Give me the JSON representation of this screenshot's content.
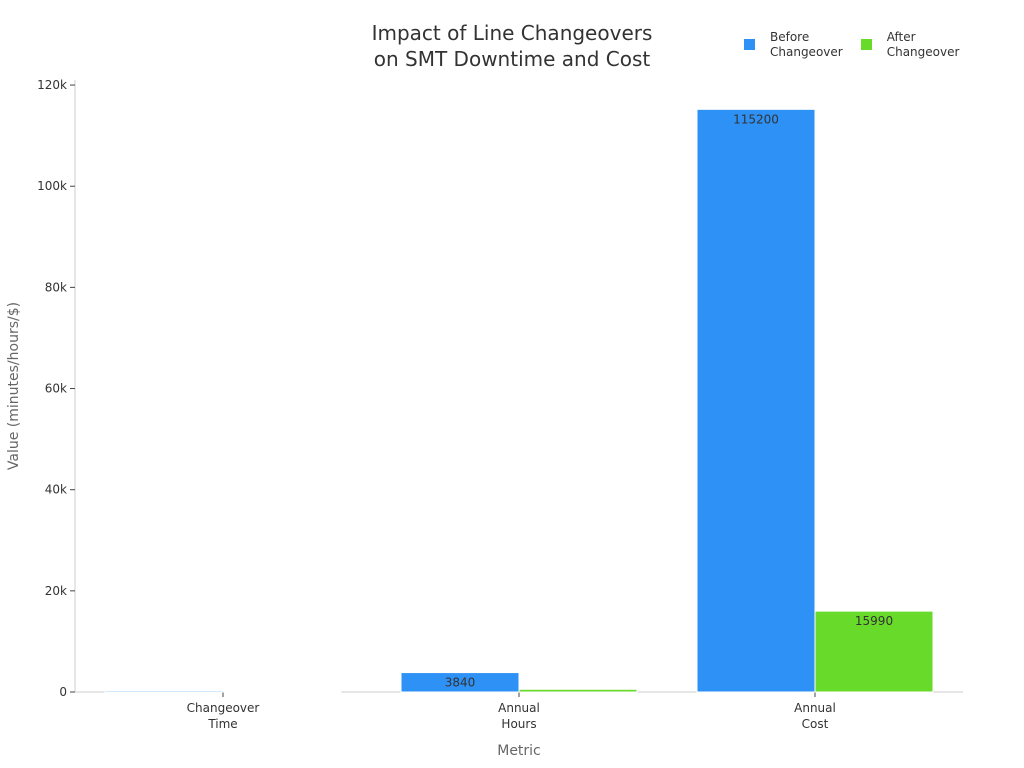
{
  "chart_data": {
    "type": "bar",
    "title_lines": [
      "Impact of Line Changeovers",
      "on SMT Downtime and Cost"
    ],
    "xlabel": "Metric",
    "ylabel": "Value (minutes/hours/$)",
    "ylim": [
      0,
      121000
    ],
    "yticks": [
      0,
      20000,
      40000,
      60000,
      80000,
      100000,
      120000
    ],
    "ytick_labels": [
      "0",
      "20k",
      "40k",
      "60k",
      "80k",
      "100k",
      "120k"
    ],
    "categories": [
      [
        "Changeover",
        "Time"
      ],
      [
        "Annual",
        "Hours"
      ],
      [
        "Annual",
        "Cost"
      ]
    ],
    "series": [
      {
        "name": "Before Changeover",
        "legend_lines": [
          "Before",
          "Changeover"
        ],
        "color": "#2E91F5",
        "values": [
          240,
          3840,
          115200
        ],
        "labels": [
          "",
          "3840",
          "115200"
        ]
      },
      {
        "name": "After Changeover",
        "legend_lines": [
          "After",
          "Changeover"
        ],
        "color": "#68DB2A",
        "values": [
          35,
          533,
          15990
        ],
        "labels": [
          "",
          "",
          "15990"
        ]
      }
    ],
    "legend_position": "top-right",
    "grid": false
  }
}
